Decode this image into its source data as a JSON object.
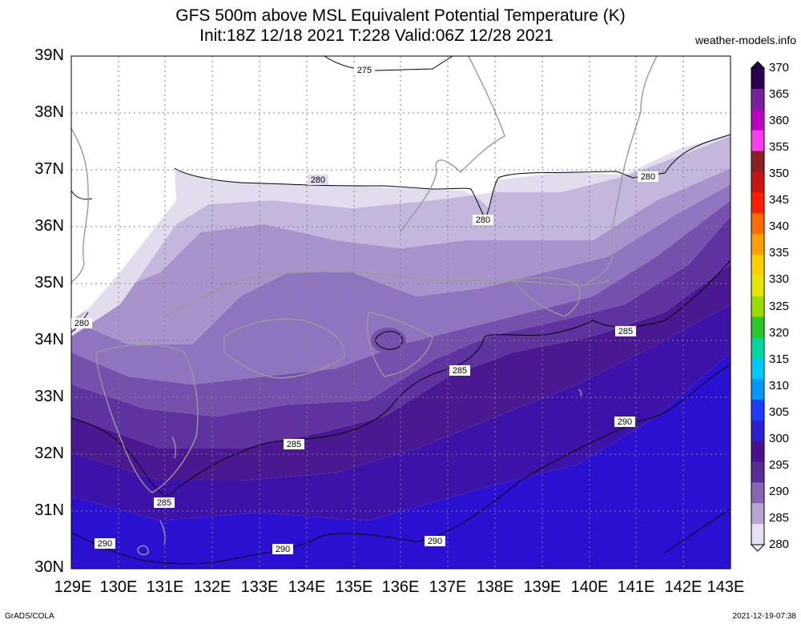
{
  "header": {
    "title_line1": "GFS 500m above MSL Equivalent Potential Temperature (K)",
    "title_line2": "Init:18Z 12/18 2021 T:228 Valid:06Z 12/28 2021",
    "site": "weather-models.info"
  },
  "footer": {
    "credit": "GrADS/COLA",
    "timestamp": "2021-12-19-07:38"
  },
  "axes": {
    "lat_labels": [
      "39N",
      "38N",
      "37N",
      "36N",
      "35N",
      "34N",
      "33N",
      "32N",
      "31N",
      "30N"
    ],
    "lon_labels": [
      "129E",
      "130E",
      "131E",
      "132E",
      "133E",
      "134E",
      "135E",
      "136E",
      "137E",
      "138E",
      "139E",
      "140E",
      "141E",
      "142E",
      "143E"
    ]
  },
  "colorbar": {
    "labels": [
      "370",
      "365",
      "360",
      "355",
      "350",
      "345",
      "340",
      "335",
      "330",
      "325",
      "320",
      "315",
      "310",
      "305",
      "300",
      "295",
      "290",
      "285",
      "280"
    ],
    "colors": [
      "#2a0050",
      "#7a1fa0",
      "#c000c0",
      "#ff3cf0",
      "#8b2020",
      "#c81414",
      "#ff1e00",
      "#ff6a00",
      "#ffa000",
      "#ffd000",
      "#e6e600",
      "#9bdc00",
      "#28c828",
      "#00d7a0",
      "#00c8ff",
      "#0096ff",
      "#1e3cff",
      "#2a1fd2",
      "#4a1090",
      "#5a2c9a",
      "#8a64b4",
      "#b9a5d2",
      "#e6e0f0"
    ]
  },
  "contours": {
    "labels": [
      "275",
      "280",
      "280",
      "280",
      "280",
      "285",
      "285",
      "285",
      "285",
      "290",
      "290",
      "290",
      "290"
    ]
  }
}
